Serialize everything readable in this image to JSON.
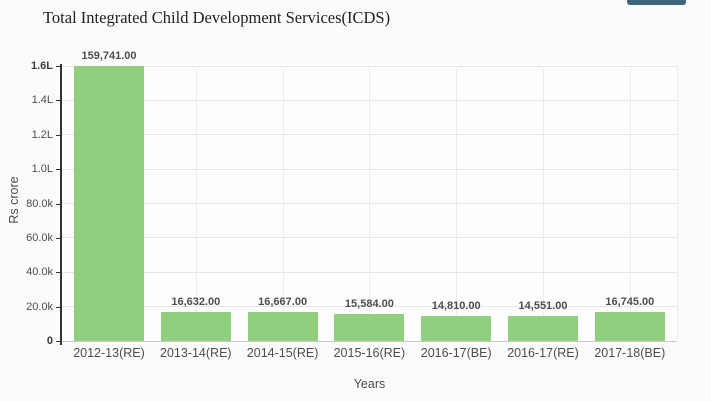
{
  "chart_data": {
    "type": "bar",
    "title": "Total Integrated Child Development Services(ICDS)",
    "xlabel": "Years",
    "ylabel": "Rs crore",
    "categories": [
      "2012-13(RE)",
      "2013-14(RE)",
      "2014-15(RE)",
      "2015-16(RE)",
      "2016-17(BE)",
      "2016-17(RE)",
      "2017-18(BE)"
    ],
    "values": [
      159741,
      16632,
      16667,
      15584,
      14810,
      14551,
      16745
    ],
    "value_labels": [
      "159,741.00",
      "16,632.00",
      "16,667.00",
      "15,584.00",
      "14,810.00",
      "14,551.00",
      "16,745.00"
    ],
    "ylim": [
      0,
      160000
    ],
    "yticks": [
      {
        "value": 0,
        "label": "0",
        "bold": true
      },
      {
        "value": 20000,
        "label": "20.0k",
        "bold": false
      },
      {
        "value": 40000,
        "label": "40.0k",
        "bold": false
      },
      {
        "value": 60000,
        "label": "60.0k",
        "bold": false
      },
      {
        "value": 80000,
        "label": "80.0k",
        "bold": false
      },
      {
        "value": 100000,
        "label": "1.0L",
        "bold": false
      },
      {
        "value": 120000,
        "label": "1.2L",
        "bold": false
      },
      {
        "value": 140000,
        "label": "1.4L",
        "bold": false
      },
      {
        "value": 160000,
        "label": "1.6L",
        "bold": true
      }
    ],
    "grid": true,
    "legend": false,
    "bar_color": "#90cf7d"
  },
  "ui": {
    "cutoff_button_color": "#40667c"
  }
}
